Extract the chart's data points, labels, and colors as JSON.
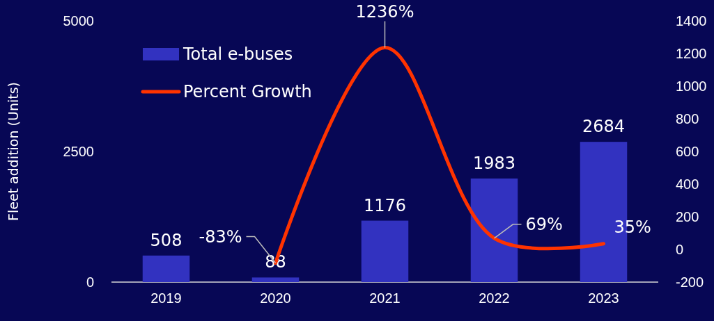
{
  "chart_data": {
    "type": "bar",
    "categories": [
      "2019",
      "2020",
      "2021",
      "2022",
      "2023"
    ],
    "ylabel": "Fleet addition (Units)",
    "ylim": [
      0,
      5000
    ],
    "yticks": [
      0,
      2500,
      5000
    ],
    "y2lim": [
      -200,
      1400
    ],
    "y2ticks": [
      -200,
      0,
      200,
      400,
      600,
      800,
      1000,
      1200,
      1400
    ],
    "legend": "top left",
    "data_labels": true,
    "series": [
      {
        "name": "Total e-buses",
        "color": "#3232c0",
        "values": [
          508,
          88,
          1176,
          1983,
          2684
        ]
      },
      {
        "name": "Percent Growth",
        "type": "line",
        "axis": "y2",
        "color": "#ff3300",
        "values": [
          null,
          -83,
          1236,
          69,
          35
        ],
        "value_labels": [
          null,
          "-83%",
          "1236%",
          "69%",
          "35%"
        ]
      }
    ]
  }
}
